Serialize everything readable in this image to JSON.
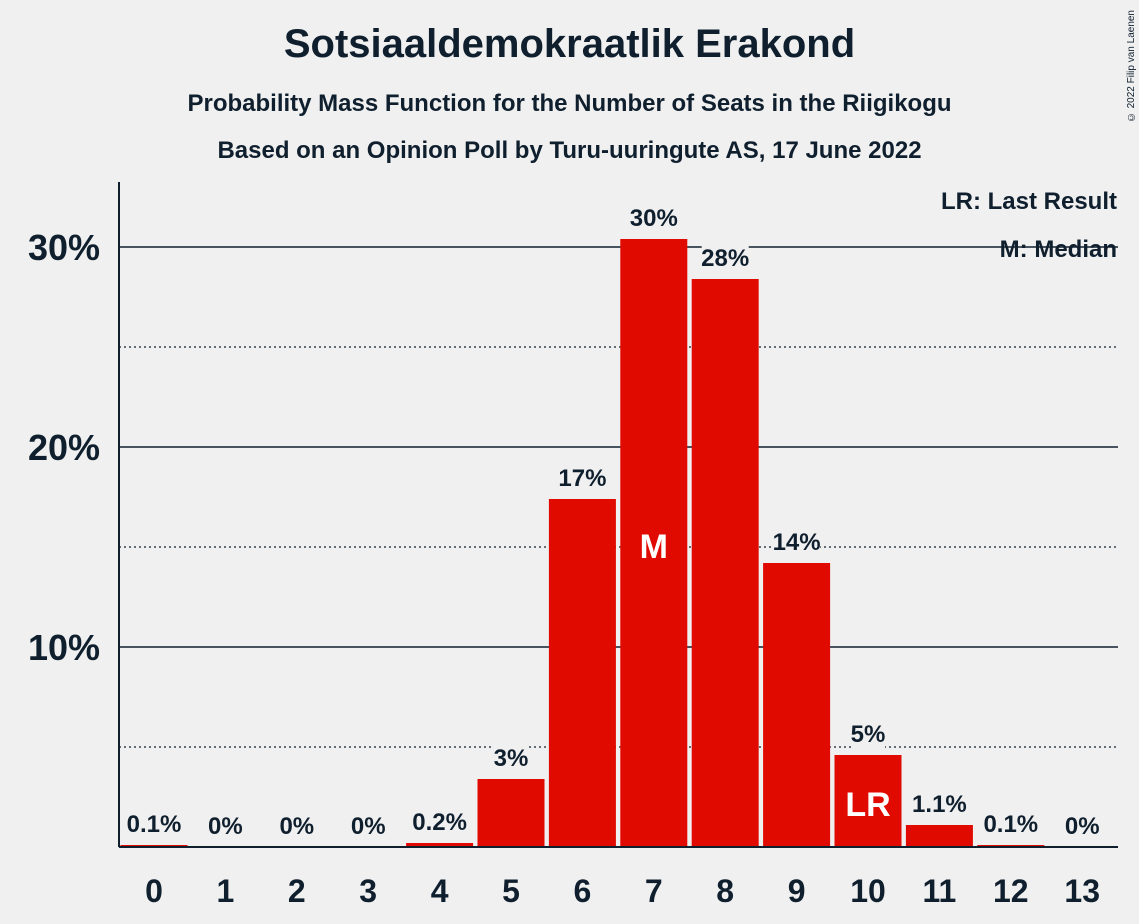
{
  "title": "Sotsiaaldemokraatlik Erakond",
  "subtitle1": "Probability Mass Function for the Number of Seats in the Riigikogu",
  "subtitle2": "Based on an Opinion Poll by Turu-uuringute AS, 17 June 2022",
  "copyright": "© 2022 Filip van Laenen",
  "legend": {
    "last_result": "LR: Last Result",
    "median": "M: Median"
  },
  "colors": {
    "bar": "#e00a00",
    "text": "#0f1f2e",
    "background": "#f0f0f0"
  },
  "chart_data": {
    "type": "bar",
    "categories": [
      "0",
      "1",
      "2",
      "3",
      "4",
      "5",
      "6",
      "7",
      "8",
      "9",
      "10",
      "11",
      "12",
      "13"
    ],
    "values": [
      0.1,
      0,
      0,
      0,
      0.2,
      3.4,
      17.4,
      30.4,
      28.4,
      14.2,
      4.6,
      1.1,
      0.1,
      0
    ],
    "data_labels": [
      "0.1%",
      "0%",
      "0%",
      "0%",
      "0.2%",
      "3%",
      "17%",
      "30%",
      "28%",
      "14%",
      "5%",
      "1.1%",
      "0.1%",
      "0%"
    ],
    "y_ticks": [
      10,
      20,
      30
    ],
    "y_tick_labels": [
      "10%",
      "20%",
      "30%"
    ],
    "ylim": [
      0,
      33
    ],
    "grid": "solid at 10% steps, dotted at 5% steps",
    "legend_position": "top-right",
    "median_seat": "7",
    "median_marker": "M",
    "last_result_seat": "10",
    "last_result_marker": "LR"
  }
}
